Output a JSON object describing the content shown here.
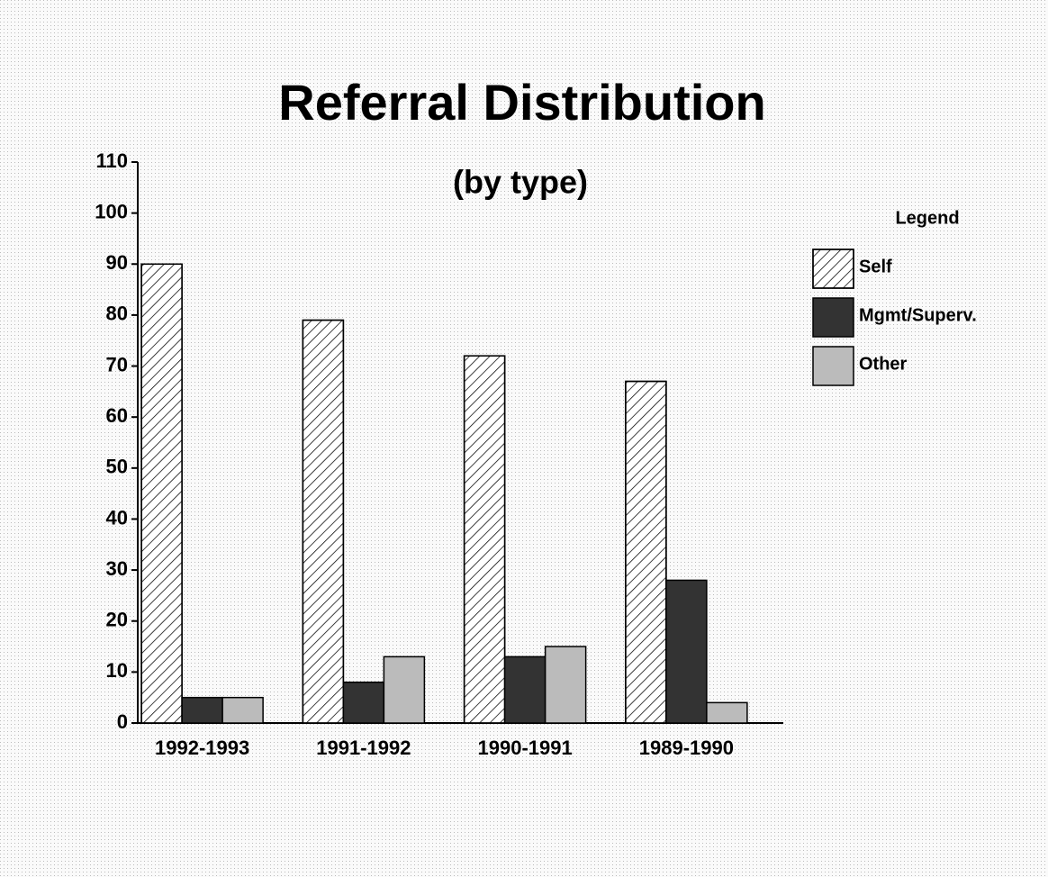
{
  "chart_data": {
    "type": "bar",
    "title": "Referral Distribution",
    "subtitle": "(by type)",
    "categories": [
      "1992-1993",
      "1991-1992",
      "1990-1991",
      "1989-1990"
    ],
    "series": [
      {
        "name": "Self",
        "color": "#ffffff",
        "pattern": "diagonal",
        "values": [
          90,
          79,
          72,
          67
        ]
      },
      {
        "name": "Mgmt/Superv.",
        "color": "#333333",
        "values": [
          5,
          8,
          13,
          28
        ]
      },
      {
        "name": "Other",
        "color": "#bbbbbb",
        "values": [
          5,
          13,
          15,
          4
        ]
      }
    ],
    "ylim": [
      0,
      110
    ],
    "yticks": [
      0,
      10,
      20,
      30,
      40,
      50,
      60,
      70,
      80,
      90,
      100,
      110
    ],
    "legend": {
      "title": "Legend",
      "position": "right"
    }
  }
}
